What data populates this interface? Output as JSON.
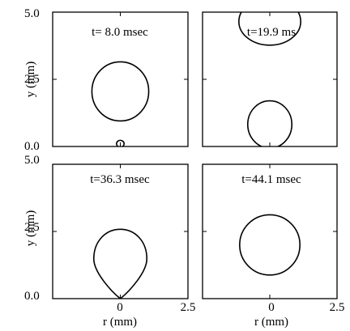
{
  "chart_data": {
    "type": "line",
    "layout": "2x2 small multiples",
    "xlabel": "r (mm)",
    "ylabel": "y (mm)",
    "xlim": [
      -2.5,
      2.5
    ],
    "ylim": [
      0.0,
      5.0
    ],
    "x_tick_labels": [
      "0",
      "2.5"
    ],
    "y_tick_labels": [
      "0.0",
      "2.5",
      "5.0"
    ],
    "grid": false,
    "panels": [
      {
        "label": "t= 8.0 msec",
        "shapes": [
          {
            "type": "ellipse",
            "cx": 0.0,
            "cy": 2.05,
            "rx": 1.05,
            "ry": 1.1
          },
          {
            "type": "ellipse",
            "cx": 0.0,
            "cy": 0.1,
            "rx": 0.14,
            "ry": 0.13
          }
        ]
      },
      {
        "label": "t=19.9 ms",
        "shapes": [
          {
            "type": "ellipse",
            "cx": 0.0,
            "cy": 4.65,
            "rx": 1.15,
            "ry": 0.88
          },
          {
            "type": "ellipse",
            "cx": 0.0,
            "cy": 0.82,
            "rx": 0.82,
            "ry": 0.88
          }
        ]
      },
      {
        "label": "t=36.3 msec",
        "shapes": [
          {
            "type": "drop",
            "cx": 0.0,
            "cy": 1.48,
            "rx": 0.98,
            "ry": 1.1,
            "tip_y": 0.0
          }
        ]
      },
      {
        "label": "t=44.1 msec",
        "shapes": [
          {
            "type": "ellipse",
            "cx": 0.0,
            "cy": 2.0,
            "rx": 1.12,
            "ry": 1.12
          }
        ]
      }
    ]
  }
}
